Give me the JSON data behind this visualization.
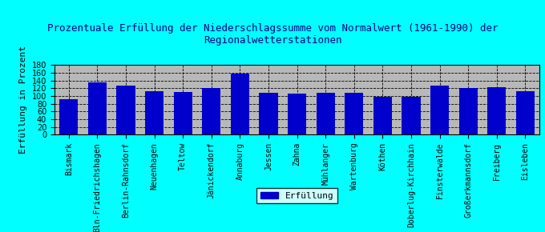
{
  "title": "Prozentuale Erfüllung der Niederschlagssumme vom Normalwert (1961-1990) der\nRegionalwetterstationen",
  "ylabel": "Erfüllung in Prozent",
  "legend_label": "Erfüllung",
  "categories": [
    "Bismark",
    "Bln-Friedrichshagen",
    "Berlin-Rahnsdorf",
    "Neuenhagen",
    "Teltow",
    "Jänickendorf",
    "Annaburg",
    "Jessen",
    "Zahna",
    "Mühlanger",
    "Wartenburg",
    "Köthen",
    "Doberlug-Kirchhain",
    "Finsterwalde",
    "Großerkmannsdorf",
    "Freiberg",
    "Eisleben"
  ],
  "values": [
    92,
    135,
    127,
    112,
    110,
    120,
    157,
    107,
    106,
    107,
    107,
    97,
    98,
    127,
    120,
    123,
    112
  ],
  "bar_color": "#0000cc",
  "background_color": "#00ffff",
  "plot_bg_color": "#b8b8b8",
  "title_color": "#000080",
  "ylim": [
    0,
    180
  ],
  "yticks": [
    0,
    20,
    40,
    60,
    80,
    100,
    120,
    140,
    160,
    180
  ],
  "title_fontsize": 9,
  "ylabel_fontsize": 8,
  "tick_fontsize": 7,
  "legend_fontsize": 8
}
